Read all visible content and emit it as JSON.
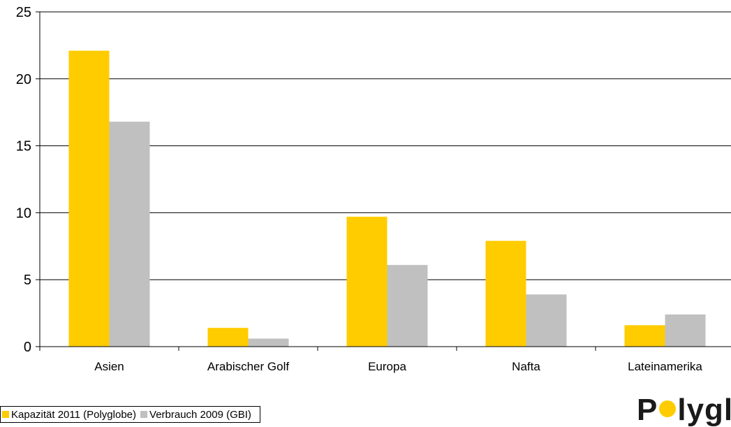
{
  "chart_data": {
    "type": "bar",
    "categories": [
      "Asien",
      "Arabischer Golf",
      "Europa",
      "Nafta",
      "Lateinamerika"
    ],
    "series": [
      {
        "name": "Kapazität 2011 (Polyglobe)",
        "color": "#ffcc00",
        "values": [
          22.1,
          1.4,
          9.7,
          7.9,
          1.6
        ]
      },
      {
        "name": "Verbrauch 2009 (GBI)",
        "color": "#c0c0c0",
        "values": [
          16.8,
          0.6,
          6.1,
          3.9,
          2.4
        ]
      }
    ],
    "yticks": [
      "0",
      "5",
      "10",
      "15",
      "20",
      "25"
    ],
    "ylim": [
      0,
      25
    ],
    "grid": true,
    "legend_position": "bottom-left"
  },
  "logo": {
    "text_before": "P",
    "text_after": "lyglo"
  }
}
